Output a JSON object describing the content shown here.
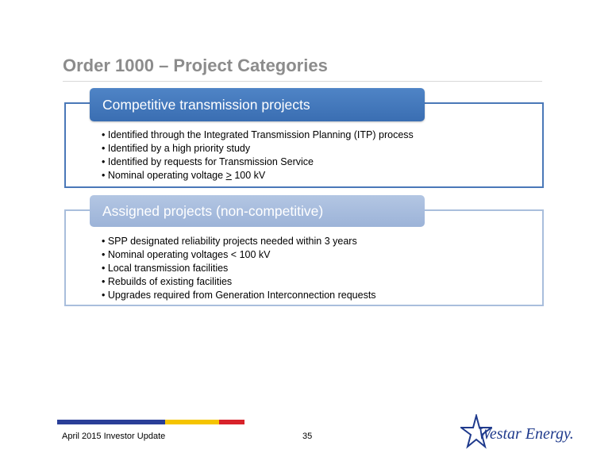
{
  "slide": {
    "title": "Order 1000 – Project Categories"
  },
  "section1": {
    "header": "Competitive transmission projects",
    "bullets": [
      "• Identified through the Integrated Transmission Planning (ITP) process",
      "• Identified by a high priority study",
      "• Identified by requests for Transmission Service"
    ],
    "last_bullet_prefix": "• Nominal operating voltage ",
    "last_bullet_symbol": ">",
    "last_bullet_suffix": " 100 kV"
  },
  "section2": {
    "header": "Assigned projects (non-competitive)",
    "bullets": [
      "• SPP designated reliability projects needed within 3 years",
      "• Nominal operating voltages < 100 kV",
      "• Local transmission facilities",
      "• Rebuilds of existing facilities",
      "• Upgrades required from Generation Interconnection requests"
    ]
  },
  "footer": {
    "left": "April 2015 Investor Update",
    "page": "35",
    "logo_text": "Westar Energy."
  },
  "colors": {
    "title": "#8c8c8c",
    "header1": "#3a6eb2",
    "header2": "#a9bedc",
    "stripe_blue": "#2a3f98",
    "stripe_yellow": "#f5c400",
    "stripe_red": "#d8232a",
    "logo": "#1f3a8c"
  }
}
